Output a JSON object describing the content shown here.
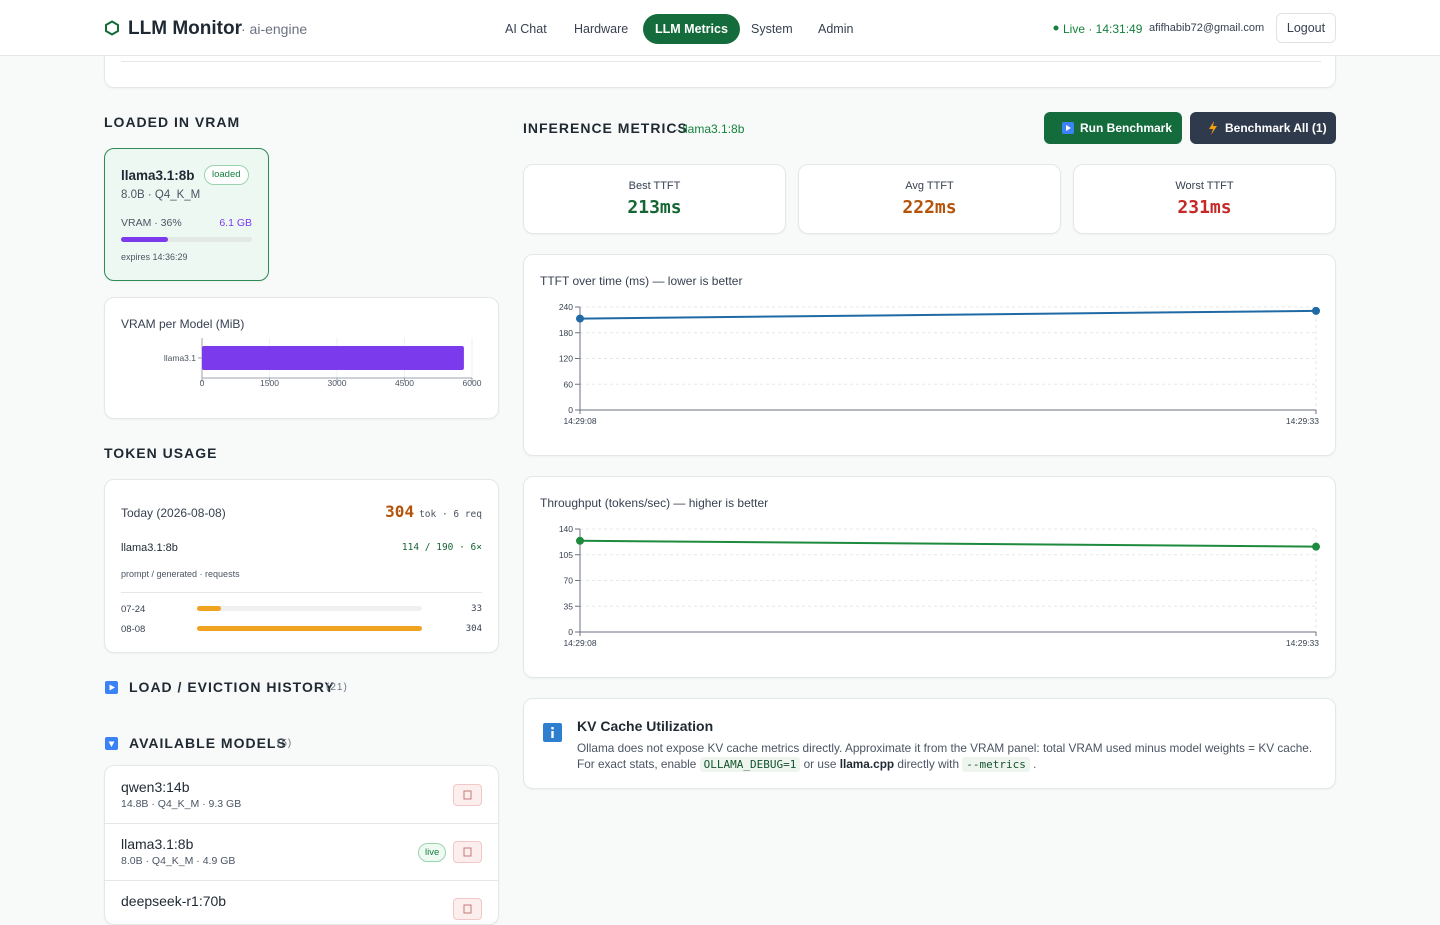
{
  "header": {
    "brand": "LLM Monitor",
    "host": "· ai-engine",
    "nav": [
      "AI Chat",
      "Hardware",
      "LLM Metrics",
      "System",
      "Admin"
    ],
    "active_nav": 2,
    "status": "Live · 14:31:49",
    "email": "afifhabib72@gmail.com",
    "logout": "Logout"
  },
  "loaded": {
    "heading": "LOADED IN VRAM",
    "model": {
      "name": "llama3.1:8b",
      "badge": "loaded",
      "meta": "8.0B · Q4_K_M",
      "vram_label": "VRAM · 36%",
      "vram_percent": 36,
      "vram_size": "6.1 GB",
      "expires": "expires 14:36:29"
    }
  },
  "vram_chart": {
    "type": "bar",
    "orientation": "horizontal",
    "title": "VRAM per Model (MiB)",
    "categories": [
      "llama3.1"
    ],
    "values": [
      5820
    ],
    "color": "#7c3aed",
    "xlim": [
      0,
      6000
    ],
    "xticks": [
      0,
      1500,
      3000,
      4500,
      6000
    ],
    "grid": true
  },
  "tokens": {
    "heading": "TOKEN USAGE",
    "today": "Today (2026-08-08)",
    "total": 304,
    "total_unit": "tok · 6 req",
    "model": "llama3.1:8b",
    "model_stats": "114 / 190 · 6×",
    "legend": "prompt / generated · requests",
    "color": "#f0a31e",
    "days": [
      {
        "date": "07-24",
        "tokens": 33
      },
      {
        "date": "08-08",
        "tokens": 304
      }
    ]
  },
  "history": {
    "heading": "LOAD / EVICTION HISTORY",
    "count": "(21)"
  },
  "models": {
    "heading": "AVAILABLE MODELS",
    "count": "(5)",
    "items": [
      {
        "name": "qwen3:14b",
        "meta": "14.8B · Q4_K_M · 9.3 GB"
      },
      {
        "name": "llama3.1:8b",
        "meta": "8.0B · Q4_K_M · 4.9 GB",
        "badge": "live"
      },
      {
        "name": "deepseek-r1:70b"
      }
    ]
  },
  "inference": {
    "heading": "INFERENCE METRICS",
    "model": "· llama3.1:8b",
    "buttons": [
      "Run Benchmark",
      "Benchmark All (1)"
    ],
    "stats": [
      {
        "label": "Best TTFT",
        "value": "213ms",
        "color": "#166534"
      },
      {
        "label": "Avg TTFT",
        "value": "222ms",
        "color": "#b45309"
      },
      {
        "label": "Worst TTFT",
        "value": "231ms",
        "color": "#c62828"
      }
    ]
  },
  "ttft_chart": {
    "type": "line",
    "title": "TTFT over time (ms) — lower is better",
    "categories": [
      "14:29:08",
      "14:29:33"
    ],
    "values": [
      213,
      231
    ],
    "color": "#1f6aa5",
    "ylim": [
      0,
      240
    ],
    "yticks": [
      0,
      60,
      120,
      180,
      240
    ],
    "grid": true
  },
  "throughput_chart": {
    "type": "line",
    "title": "Throughput (tokens/sec) — higher is better",
    "categories": [
      "14:29:08",
      "14:29:33"
    ],
    "values": [
      124,
      116
    ],
    "color": "#1e8a3e",
    "ylim": [
      0,
      140
    ],
    "yticks": [
      0,
      35,
      70,
      105,
      140
    ],
    "grid": true
  },
  "kv_cache": {
    "title": "KV Cache Utilization",
    "line1": "Ollama does not expose KV cache metrics directly. Approximate it from the VRAM panel: total VRAM used minus model weights = KV cache.",
    "line2": [
      {
        "text": "For exact stats, enable "
      },
      {
        "code": "OLLAMA_DEBUG=1"
      },
      {
        "text": " or use "
      },
      {
        "bold": "llama.cpp"
      },
      {
        "text": " directly with "
      },
      {
        "code": "--metrics"
      },
      {
        "text": " ."
      }
    ]
  }
}
